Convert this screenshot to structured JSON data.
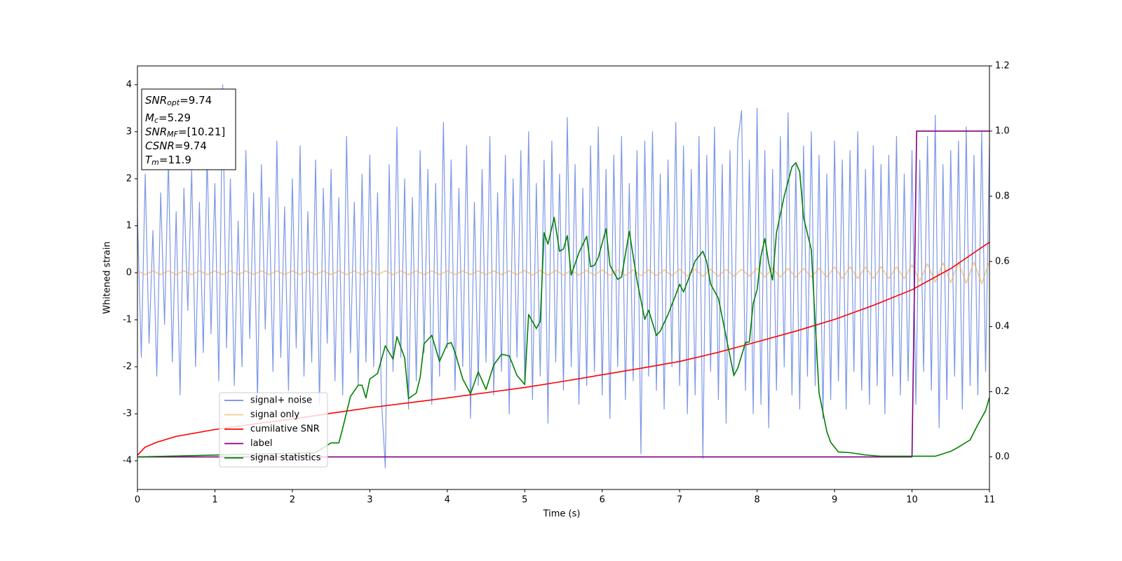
{
  "chart_data": {
    "type": "line",
    "xlabel": "Time (s)",
    "ylabel": "Whitened strain",
    "xlim": [
      0,
      11
    ],
    "xticks": [
      0,
      1,
      2,
      3,
      4,
      5,
      6,
      7,
      8,
      9,
      10,
      11
    ],
    "ylim": [
      -4.61,
      4.4
    ],
    "yticks": [
      -4,
      -3,
      -2,
      -1,
      0,
      1,
      2,
      3,
      4
    ],
    "y2lim": [
      -0.1,
      1.2
    ],
    "y2ticks": [
      {
        "value": 0,
        "label": "0.0"
      },
      0.2,
      0.4,
      0.6,
      0.8,
      {
        "value": 1,
        "label": "1.0"
      },
      1.2
    ],
    "legend": "lower left",
    "annotations": [
      {
        "base": "SNR",
        "sub": "opt",
        "text": "=9.74"
      },
      {
        "base": "M",
        "sub": "c",
        "text": "=5.29"
      },
      {
        "base": "SNR",
        "sub": "MF",
        "text": "=[10.21]"
      },
      {
        "base": "CSNR",
        "text": "=9.74"
      },
      {
        "base": "T",
        "sub": "m",
        "text": "=11.9"
      }
    ],
    "series": [
      {
        "name": "signal+ noise",
        "color": "#6f8ce6",
        "x": [
          0,
          0.05,
          0.1,
          0.15,
          0.2,
          0.25,
          0.3,
          0.35,
          0.4,
          0.45,
          0.5,
          0.55,
          0.6,
          0.65,
          0.7,
          0.75,
          0.8,
          0.85,
          0.9,
          0.95,
          1,
          1.05,
          1.1,
          1.15,
          1.2,
          1.25,
          1.3,
          1.35,
          1.4,
          1.45,
          1.5,
          1.55,
          1.6,
          1.65,
          1.7,
          1.75,
          1.8,
          1.85,
          1.9,
          1.95,
          2,
          2.05,
          2.1,
          2.15,
          2.2,
          2.25,
          2.3,
          2.35,
          2.4,
          2.45,
          2.5,
          2.55,
          2.6,
          2.65,
          2.7,
          2.75,
          2.8,
          2.85,
          2.9,
          2.95,
          3,
          3.05,
          3.1,
          3.15,
          3.2,
          3.25,
          3.3,
          3.35,
          3.4,
          3.45,
          3.5,
          3.55,
          3.6,
          3.65,
          3.7,
          3.75,
          3.8,
          3.85,
          3.9,
          3.95,
          4,
          4.05,
          4.1,
          4.15,
          4.2,
          4.25,
          4.3,
          4.35,
          4.4,
          4.45,
          4.5,
          4.55,
          4.6,
          4.65,
          4.7,
          4.75,
          4.8,
          4.85,
          4.9,
          4.95,
          5,
          5.05,
          5.1,
          5.15,
          5.2,
          5.25,
          5.3,
          5.35,
          5.4,
          5.45,
          5.5,
          5.55,
          5.6,
          5.65,
          5.7,
          5.75,
          5.8,
          5.85,
          5.9,
          5.95,
          6,
          6.05,
          6.1,
          6.15,
          6.2,
          6.25,
          6.3,
          6.35,
          6.4,
          6.45,
          6.5,
          6.55,
          6.6,
          6.65,
          6.7,
          6.75,
          6.8,
          6.85,
          6.9,
          6.95,
          7,
          7.05,
          7.1,
          7.15,
          7.2,
          7.25,
          7.3,
          7.35,
          7.4,
          7.45,
          7.5,
          7.55,
          7.6,
          7.65,
          7.7,
          7.75,
          7.8,
          7.85,
          7.9,
          7.95,
          8,
          8.05,
          8.1,
          8.15,
          8.2,
          8.25,
          8.3,
          8.35,
          8.4,
          8.45,
          8.5,
          8.55,
          8.6,
          8.65,
          8.7,
          8.75,
          8.8,
          8.85,
          8.9,
          8.95,
          9,
          9.05,
          9.1,
          9.15,
          9.2,
          9.25,
          9.3,
          9.35,
          9.4,
          9.45,
          9.5,
          9.55,
          9.6,
          9.65,
          9.7,
          9.75,
          9.8,
          9.85,
          9.9,
          9.95,
          10,
          10.05,
          10.1,
          10.15,
          10.2,
          10.25,
          10.3,
          10.35,
          10.4,
          10.45,
          10.5,
          10.55,
          10.6,
          10.65,
          10.7,
          10.75,
          10.8,
          10.85,
          10.9,
          10.95,
          11
        ],
        "values": [
          1.2,
          -1.8,
          2.1,
          -1.5,
          0.9,
          -2.2,
          1.7,
          -1.1,
          2.4,
          -1.9,
          1.3,
          -2.6,
          1.8,
          -0.8,
          2.2,
          -2.0,
          1.5,
          -1.7,
          2.5,
          -1.3,
          1.9,
          -2.3,
          4.0,
          -1.6,
          2.0,
          -2.4,
          1.1,
          -2.0,
          2.6,
          -1.4,
          1.7,
          -2.7,
          2.3,
          -1.2,
          1.6,
          -2.1,
          2.8,
          -1.8,
          1.4,
          -2.5,
          2.0,
          -1.6,
          2.7,
          -2.2,
          1.3,
          -1.9,
          2.4,
          -2.8,
          1.8,
          -1.5,
          2.2,
          -2.3,
          1.6,
          -2.6,
          2.9,
          -1.7,
          1.5,
          -2.4,
          2.1,
          -1.9,
          2.5,
          -2.0,
          1.7,
          -2.7,
          -4.15,
          2.3,
          -2.1,
          3.1,
          -1.8,
          2.0,
          -2.9,
          1.6,
          -2.3,
          2.6,
          -1.7,
          2.2,
          -2.8,
          1.9,
          -2.2,
          3.2,
          -1.6,
          2.4,
          -2.5,
          1.8,
          -2.0,
          2.7,
          -3.1,
          1.5,
          -2.4,
          2.2,
          -1.9,
          2.9,
          -2.6,
          1.7,
          -2.1,
          2.5,
          -3.0,
          2.0,
          -1.8,
          2.6,
          -2.3,
          3.0,
          -2.7,
          1.9,
          -2.2,
          2.4,
          -3.2,
          2.8,
          -1.9,
          2.1,
          -2.5,
          3.3,
          -2.0,
          2.3,
          -2.8,
          1.8,
          -2.4,
          2.7,
          -2.1,
          3.1,
          -2.6,
          2.2,
          -3.1,
          2.5,
          -2.0,
          2.9,
          -2.7,
          1.9,
          -2.3,
          2.6,
          -3.85,
          2.8,
          -2.2,
          3.0,
          -2.5,
          2.1,
          -2.9,
          2.4,
          -2.0,
          3.2,
          -2.4,
          2.7,
          -3.0,
          2.2,
          -2.6,
          2.9,
          -3.95,
          2.5,
          -2.1,
          3.1,
          -2.7,
          2.3,
          -3.2,
          2.6,
          -2.2,
          2.8,
          3.45,
          -2.5,
          2.4,
          -3.0,
          3.5,
          -2.8,
          2.6,
          -3.3,
          2.2,
          -2.5,
          2.9,
          -2.0,
          3.4,
          -2.6,
          2.3,
          -2.9,
          2.7,
          -2.2,
          3.0,
          -2.4,
          2.5,
          -3.1,
          2.1,
          -2.7,
          2.8,
          -2.3,
          2.4,
          -2.9,
          2.6,
          -2.1,
          3.0,
          -2.5,
          2.2,
          -2.8,
          2.7,
          -2.4,
          2.3,
          -3.0,
          2.5,
          -2.2,
          2.9,
          -2.6,
          2.1,
          -2.3,
          2.6,
          -2.8,
          2.4,
          -2.1,
          2.9,
          -2.5,
          3.35,
          -3.3,
          2.3,
          -2.7,
          2.6,
          -2.2,
          2.8,
          -2.9,
          3.1,
          -2.4,
          2.5,
          -2.6,
          3.0,
          -2.1,
          2.7
        ]
      },
      {
        "name": "signal only",
        "color": "#f0a840",
        "x": [
          0,
          0.1,
          0.2,
          0.3,
          0.4,
          0.5,
          0.6,
          0.7,
          0.8,
          0.9,
          1,
          1.1,
          1.2,
          1.3,
          1.4,
          1.5,
          1.6,
          1.7,
          1.8,
          1.9,
          2,
          2.1,
          2.2,
          2.3,
          2.4,
          2.5,
          2.6,
          2.7,
          2.8,
          2.9,
          3,
          3.1,
          3.2,
          3.3,
          3.4,
          3.5,
          3.6,
          3.7,
          3.8,
          3.9,
          4,
          4.1,
          4.2,
          4.3,
          4.4,
          4.5,
          4.6,
          4.7,
          4.8,
          4.9,
          5,
          5.1,
          5.2,
          5.3,
          5.4,
          5.5,
          5.6,
          5.7,
          5.8,
          5.9,
          6,
          6.1,
          6.2,
          6.3,
          6.4,
          6.5,
          6.6,
          6.7,
          6.8,
          6.9,
          7,
          7.1,
          7.2,
          7.3,
          7.4,
          7.5,
          7.6,
          7.7,
          7.8,
          7.9,
          8,
          8.1,
          8.2,
          8.3,
          8.4,
          8.5,
          8.6,
          8.7,
          8.8,
          8.9,
          9,
          9.1,
          9.2,
          9.3,
          9.4,
          9.5,
          9.6,
          9.7,
          9.8,
          9.9,
          10,
          10.1,
          10.2,
          10.3,
          10.4,
          10.5,
          10.6,
          10.7,
          10.8,
          10.9,
          11
        ],
        "values": [
          0.04,
          -0.04,
          0.04,
          -0.04,
          0.04,
          -0.04,
          0.04,
          -0.04,
          0.04,
          -0.04,
          0.04,
          -0.04,
          0.04,
          -0.04,
          0.04,
          -0.04,
          0.04,
          -0.04,
          0.04,
          -0.04,
          0.04,
          -0.04,
          0.04,
          -0.04,
          0.04,
          -0.04,
          0.04,
          -0.04,
          0.04,
          -0.04,
          0.04,
          -0.04,
          0.04,
          -0.04,
          0.04,
          -0.04,
          0.04,
          -0.04,
          0.04,
          -0.04,
          0.04,
          -0.04,
          0.04,
          -0.04,
          0.04,
          -0.04,
          0.04,
          -0.04,
          0.04,
          -0.04,
          0.05,
          -0.05,
          0.05,
          -0.05,
          0.05,
          -0.05,
          0.05,
          -0.05,
          0.05,
          -0.05,
          0.06,
          -0.06,
          0.06,
          -0.06,
          0.06,
          -0.06,
          0.06,
          -0.06,
          0.06,
          -0.06,
          0.075,
          -0.075,
          0.075,
          -0.075,
          0.075,
          -0.075,
          0.075,
          -0.075,
          0.075,
          -0.075,
          0.095,
          -0.095,
          0.095,
          -0.095,
          0.095,
          -0.095,
          0.095,
          -0.095,
          0.095,
          -0.095,
          0.125,
          -0.125,
          0.125,
          -0.125,
          0.125,
          -0.125,
          0.125,
          -0.125,
          0.125,
          -0.125,
          0.17,
          -0.18,
          0.19,
          -0.2,
          0.21,
          -0.215,
          0.22,
          -0.225,
          0.23,
          -0.235,
          0.24
        ]
      },
      {
        "name": "cumilative SNR",
        "color": "#ff0000",
        "axis": "y2",
        "x": [
          0,
          0.1,
          0.25,
          0.5,
          1,
          1.5,
          2,
          2.5,
          3,
          3.5,
          4,
          4.5,
          5,
          5.5,
          6,
          6.5,
          7,
          7.5,
          8,
          8.5,
          9,
          9.5,
          10,
          10.5,
          11
        ],
        "values": [
          0.005,
          0.03,
          0.045,
          0.063,
          0.084,
          0.101,
          0.116,
          0.134,
          0.151,
          0.166,
          0.181,
          0.197,
          0.213,
          0.232,
          0.252,
          0.272,
          0.293,
          0.321,
          0.353,
          0.386,
          0.422,
          0.465,
          0.513,
          0.578,
          0.659
        ]
      },
      {
        "name": "label",
        "color": "#800080",
        "axis": "y2",
        "x": [
          0,
          10,
          10.06,
          11
        ],
        "values": [
          0,
          0,
          1,
          1
        ]
      },
      {
        "name": "signal statistics",
        "color": "#008000",
        "axis": "y2",
        "x": [
          0,
          2.3,
          2.5,
          2.6,
          2.65,
          2.75,
          2.85,
          2.9,
          2.95,
          3.0,
          3.1,
          3.2,
          3.3,
          3.35,
          3.45,
          3.5,
          3.6,
          3.65,
          3.7,
          3.8,
          3.9,
          4.0,
          4.05,
          4.1,
          4.2,
          4.3,
          4.4,
          4.5,
          4.6,
          4.7,
          4.8,
          4.9,
          5.0,
          5.05,
          5.15,
          5.2,
          5.25,
          5.3,
          5.38,
          5.45,
          5.5,
          5.55,
          5.6,
          5.7,
          5.8,
          5.85,
          5.9,
          5.95,
          6.05,
          6.1,
          6.2,
          6.25,
          6.35,
          6.45,
          6.55,
          6.6,
          6.7,
          6.75,
          6.85,
          6.95,
          7.0,
          7.05,
          7.1,
          7.2,
          7.3,
          7.35,
          7.4,
          7.5,
          7.6,
          7.7,
          7.75,
          7.85,
          7.9,
          7.95,
          8.0,
          8.05,
          8.1,
          8.15,
          8.2,
          8.25,
          8.35,
          8.45,
          8.5,
          8.55,
          8.6,
          8.7,
          8.75,
          8.8,
          8.9,
          8.95,
          9.05,
          9.2,
          9.4,
          9.6,
          10.0,
          10.3,
          10.5,
          10.6,
          10.75,
          10.85,
          10.95,
          11.0
        ],
        "values": [
          0,
          0.013,
          0.043,
          0.043,
          0.088,
          0.185,
          0.22,
          0.22,
          0.181,
          0.239,
          0.256,
          0.341,
          0.3,
          0.369,
          0.304,
          0.179,
          0.196,
          0.244,
          0.347,
          0.373,
          0.293,
          0.347,
          0.351,
          0.321,
          0.239,
          0.194,
          0.261,
          0.207,
          0.282,
          0.315,
          0.31,
          0.25,
          0.222,
          0.437,
          0.394,
          0.416,
          0.688,
          0.653,
          0.735,
          0.631,
          0.638,
          0.679,
          0.558,
          0.627,
          0.677,
          0.584,
          0.588,
          0.612,
          0.7,
          0.588,
          0.545,
          0.552,
          0.692,
          0.541,
          0.422,
          0.45,
          0.373,
          0.386,
          0.437,
          0.498,
          0.53,
          0.506,
          0.537,
          0.601,
          0.631,
          0.599,
          0.53,
          0.487,
          0.369,
          0.25,
          0.272,
          0.351,
          0.353,
          0.472,
          0.513,
          0.616,
          0.67,
          0.595,
          0.543,
          0.688,
          0.8,
          0.89,
          0.903,
          0.875,
          0.735,
          0.636,
          0.412,
          0.196,
          0.078,
          0.045,
          0.015,
          0.013,
          0.006,
          0.002,
          0.002,
          0.002,
          0.017,
          0.03,
          0.052,
          0.099,
          0.142,
          0.183
        ]
      }
    ]
  }
}
